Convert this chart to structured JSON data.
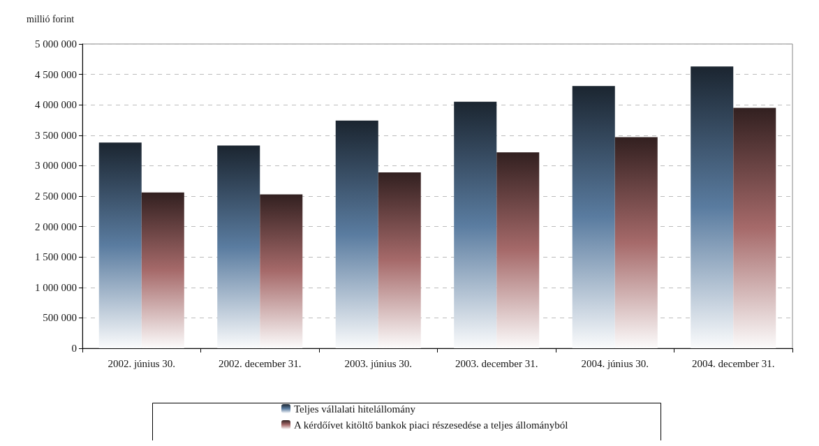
{
  "chart_data": {
    "type": "bar",
    "ylabel": "millió forint",
    "categories": [
      "2002. június 30.",
      "2002. december 31.",
      "2003. június 30.",
      "2003. december 31.",
      "2004. június 30.",
      "2004. december 31."
    ],
    "series": [
      {
        "name": "Teljes vállalati hitelállomány",
        "color": "#5a7ca0",
        "values": [
          3380000,
          3330000,
          3740000,
          4050000,
          4310000,
          4630000
        ]
      },
      {
        "name": "A kérdőívet kitöltő bankok piaci részesedése a teljes állományból",
        "color": "#a66a6a",
        "values": [
          2560000,
          2530000,
          2890000,
          3220000,
          3470000,
          3950000
        ]
      }
    ],
    "ylim": [
      0,
      5000000
    ],
    "yticks": [
      {
        "value": 0,
        "label": "0"
      },
      {
        "value": 500000,
        "label": "500 000"
      },
      {
        "value": 1000000,
        "label": "1 000 000"
      },
      {
        "value": 1500000,
        "label": "1 500 000"
      },
      {
        "value": 2000000,
        "label": "2 000 000"
      },
      {
        "value": 2500000,
        "label": "2 500 000"
      },
      {
        "value": 3000000,
        "label": "3 000 000"
      },
      {
        "value": 3500000,
        "label": "3 500 000"
      },
      {
        "value": 4000000,
        "label": "4 000 000"
      },
      {
        "value": 4500000,
        "label": "4 500 000"
      },
      {
        "value": 5000000,
        "label": "5 000 000"
      }
    ],
    "grid": "y",
    "legend": "bottom"
  }
}
